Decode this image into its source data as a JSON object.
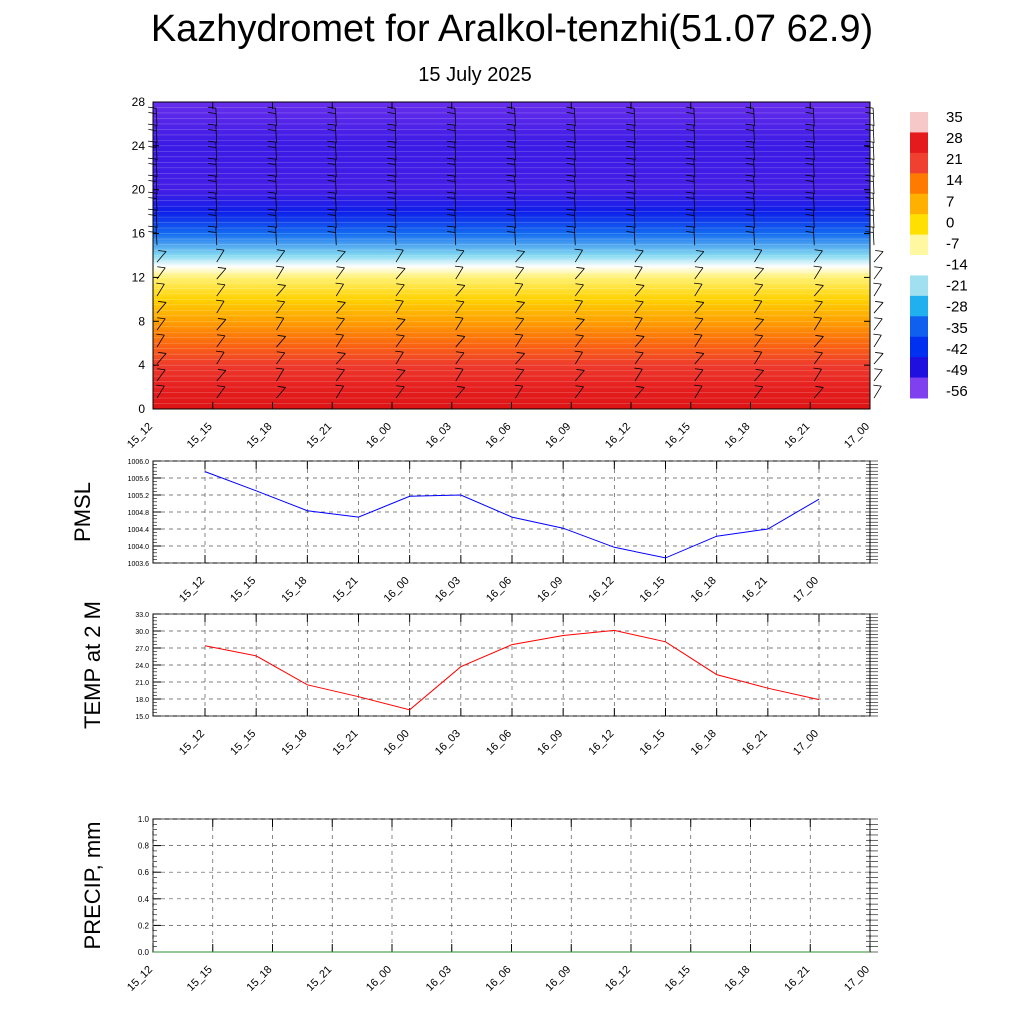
{
  "header": {
    "title": "Kazhydromet for Aralkol-tenzhi(51.07 62.9)",
    "date": "15 July 2025"
  },
  "time_labels": [
    "15_12",
    "15_15",
    "15_18",
    "15_21",
    "16_00",
    "16_03",
    "16_06",
    "16_09",
    "16_12",
    "16_15",
    "16_18",
    "16_21",
    "17_00"
  ],
  "chart_data": [
    {
      "type": "heatmap",
      "title": "",
      "xlabel": "",
      "ylabel": "",
      "x": [
        "15_12",
        "15_15",
        "15_18",
        "15_21",
        "16_00",
        "16_03",
        "16_06",
        "16_09",
        "16_12",
        "16_15",
        "16_18",
        "16_21",
        "17_00"
      ],
      "ylim": [
        0,
        28
      ],
      "y_ticks": [
        0,
        4,
        8,
        12,
        16,
        20,
        24,
        28
      ],
      "z_profile": [
        {
          "y": 0,
          "value": 30
        },
        {
          "y": 2,
          "value": 27
        },
        {
          "y": 4,
          "value": 22
        },
        {
          "y": 6,
          "value": 16
        },
        {
          "y": 8,
          "value": 9
        },
        {
          "y": 10,
          "value": 2
        },
        {
          "y": 12,
          "value": -5
        },
        {
          "y": 13,
          "value": -14
        },
        {
          "y": 14,
          "value": -22
        },
        {
          "y": 16,
          "value": -34
        },
        {
          "y": 18,
          "value": -45
        },
        {
          "y": 20,
          "value": -53
        },
        {
          "y": 24,
          "value": -52
        },
        {
          "y": 28,
          "value": -57
        }
      ],
      "colorbar": {
        "labels": [
          "35",
          "28",
          "21",
          "14",
          "7",
          "0",
          "-7",
          "-14",
          "-21",
          "-28",
          "-35",
          "-42",
          "-49",
          "-56"
        ],
        "colors": [
          "#f7c8c8",
          "#e41a1c",
          "#f04030",
          "#ff7a00",
          "#ffb000",
          "#ffe000",
          "#fff8a0",
          "#ffffff",
          "#a0e0f0",
          "#20b0f0",
          "#1060f0",
          "#0030f0",
          "#2010e0",
          "#8040f0"
        ]
      }
    },
    {
      "type": "line",
      "title": "",
      "xlabel": "",
      "ylabel": "PMSL",
      "x": [
        "15_12",
        "15_15",
        "15_18",
        "15_21",
        "16_00",
        "16_03",
        "16_06",
        "16_09",
        "16_12",
        "16_15",
        "16_18",
        "16_21",
        "17_00"
      ],
      "series": [
        {
          "values": [
            1005.75,
            1005.3,
            1004.83,
            1004.68,
            1005.17,
            1005.2,
            1004.68,
            1004.42,
            1003.97,
            1003.72,
            1004.23,
            1004.4,
            1005.1
          ]
        }
      ],
      "ylim": [
        1003.6,
        1006.0
      ],
      "y_ticks": [
        "1003.6",
        "1004.0",
        "1004.4",
        "1004.8",
        "1005.2",
        "1005.6",
        "1006.0"
      ],
      "color": "#0000ff",
      "grid": true
    },
    {
      "type": "line",
      "title": "",
      "xlabel": "",
      "ylabel": "TEMP at 2 M",
      "x": [
        "15_12",
        "15_15",
        "15_18",
        "15_21",
        "16_00",
        "16_03",
        "16_06",
        "16_09",
        "16_12",
        "16_15",
        "16_18",
        "16_21",
        "17_00"
      ],
      "series": [
        {
          "values": [
            27.4,
            25.6,
            20.5,
            18.4,
            16.1,
            23.7,
            27.6,
            29.2,
            30.1,
            28.1,
            22.3,
            19.9,
            17.9
          ]
        }
      ],
      "ylim": [
        15.0,
        33.0
      ],
      "y_ticks": [
        "15.0",
        "18.0",
        "21.0",
        "24.0",
        "27.0",
        "30.0",
        "33.0"
      ],
      "color": "#ff0000",
      "grid": true
    },
    {
      "type": "line",
      "title": "",
      "xlabel": "",
      "ylabel": "PRECIP, mm",
      "x": [
        "15_12",
        "15_15",
        "15_18",
        "15_21",
        "16_00",
        "16_03",
        "16_06",
        "16_09",
        "16_12",
        "16_15",
        "16_18",
        "16_21",
        "17_00"
      ],
      "series": [
        {
          "values": [
            0,
            0,
            0,
            0,
            0,
            0,
            0,
            0,
            0,
            0,
            0,
            0,
            0
          ]
        }
      ],
      "ylim": [
        0.0,
        1.0
      ],
      "y_ticks": [
        "0.0",
        "0.2",
        "0.4",
        "0.6",
        "0.8",
        "1.0"
      ],
      "color": "#2e8b2e",
      "grid": true
    }
  ]
}
